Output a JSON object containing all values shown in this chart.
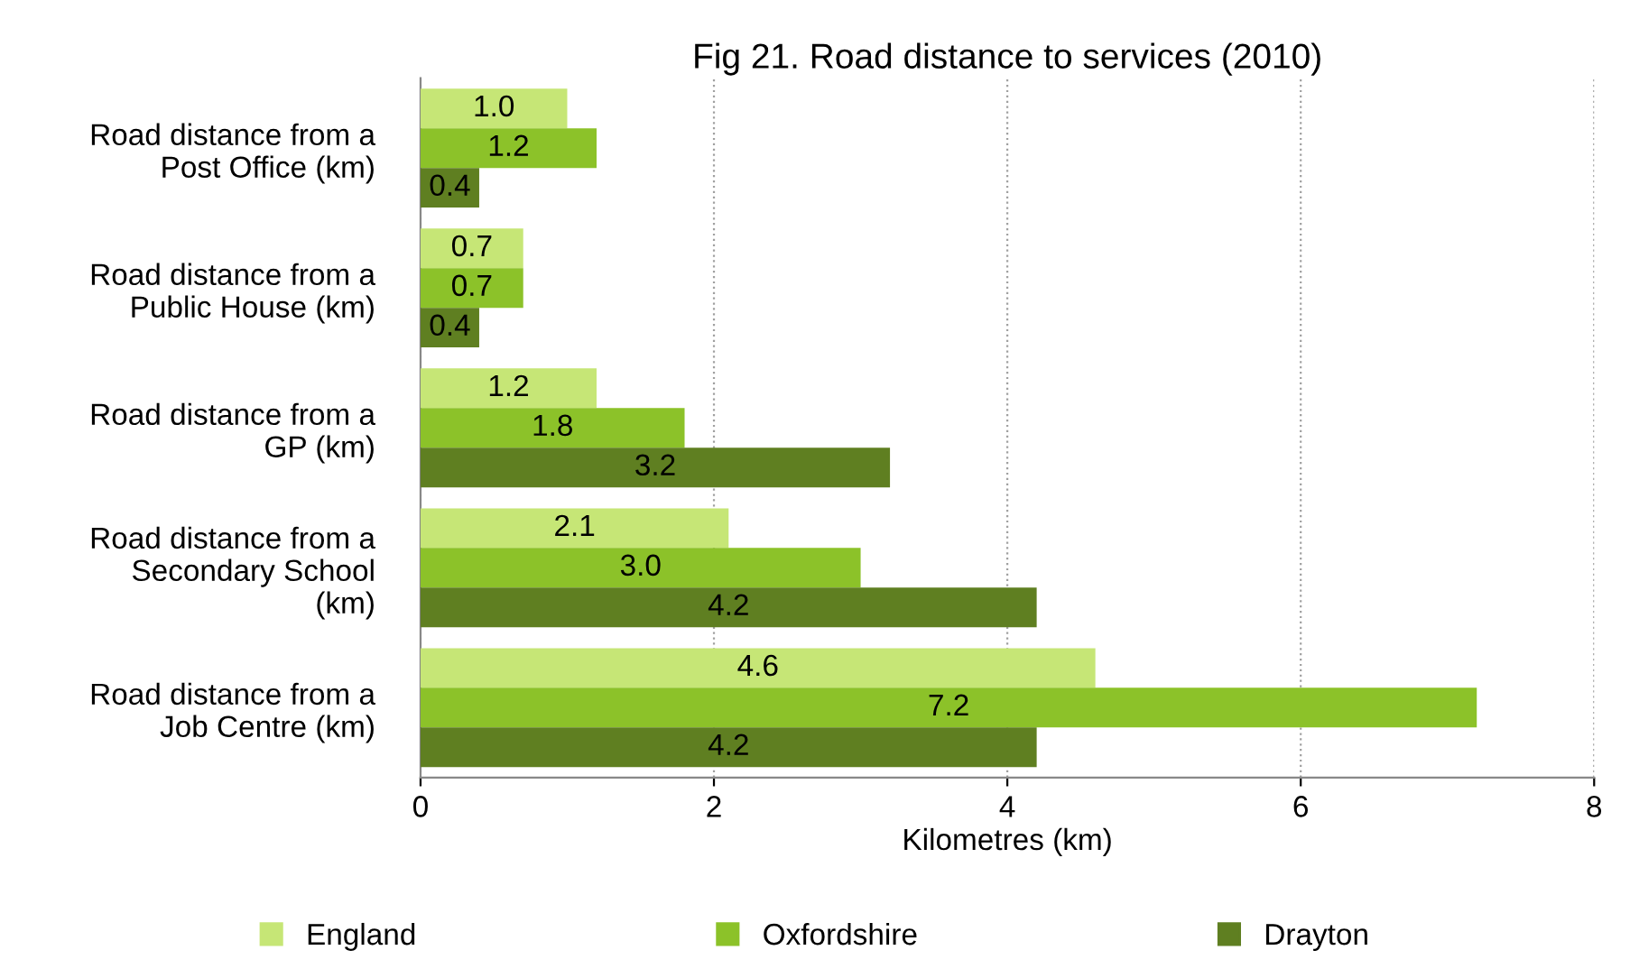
{
  "chart_data": {
    "type": "bar",
    "orientation": "horizontal",
    "title": "Fig 21. Road distance to services (2010)",
    "xlabel": "Kilometres (km)",
    "categories": [
      "Road distance from a\nPost Office (km)",
      "Road distance from a\nPublic House (km)",
      "Road distance from a\nGP (km)",
      "Road distance from a\nSecondary School\n(km)",
      "Road distance from a\nJob Centre (km)"
    ],
    "series": [
      {
        "name": "England",
        "color": "#c6e676",
        "values": [
          1.0,
          0.7,
          1.2,
          2.1,
          4.6
        ],
        "value_labels": [
          "1.0",
          "0.7",
          "1.2",
          "2.1",
          "4.6"
        ]
      },
      {
        "name": "Oxfordshire",
        "color": "#8cc229",
        "values": [
          1.2,
          0.7,
          1.8,
          3.0,
          7.2
        ],
        "value_labels": [
          "1.2",
          "0.7",
          "1.8",
          "3.0",
          "7.2"
        ]
      },
      {
        "name": "Drayton",
        "color": "#5f7f21",
        "values": [
          0.4,
          0.4,
          3.2,
          4.2,
          4.2
        ],
        "value_labels": [
          "0.4",
          "0.4",
          "3.2",
          "4.2",
          "4.2"
        ]
      }
    ],
    "xlim": [
      0,
      8
    ],
    "xticks": [
      0,
      2,
      4,
      6,
      8
    ],
    "grid": "x",
    "legend": "bottom"
  }
}
